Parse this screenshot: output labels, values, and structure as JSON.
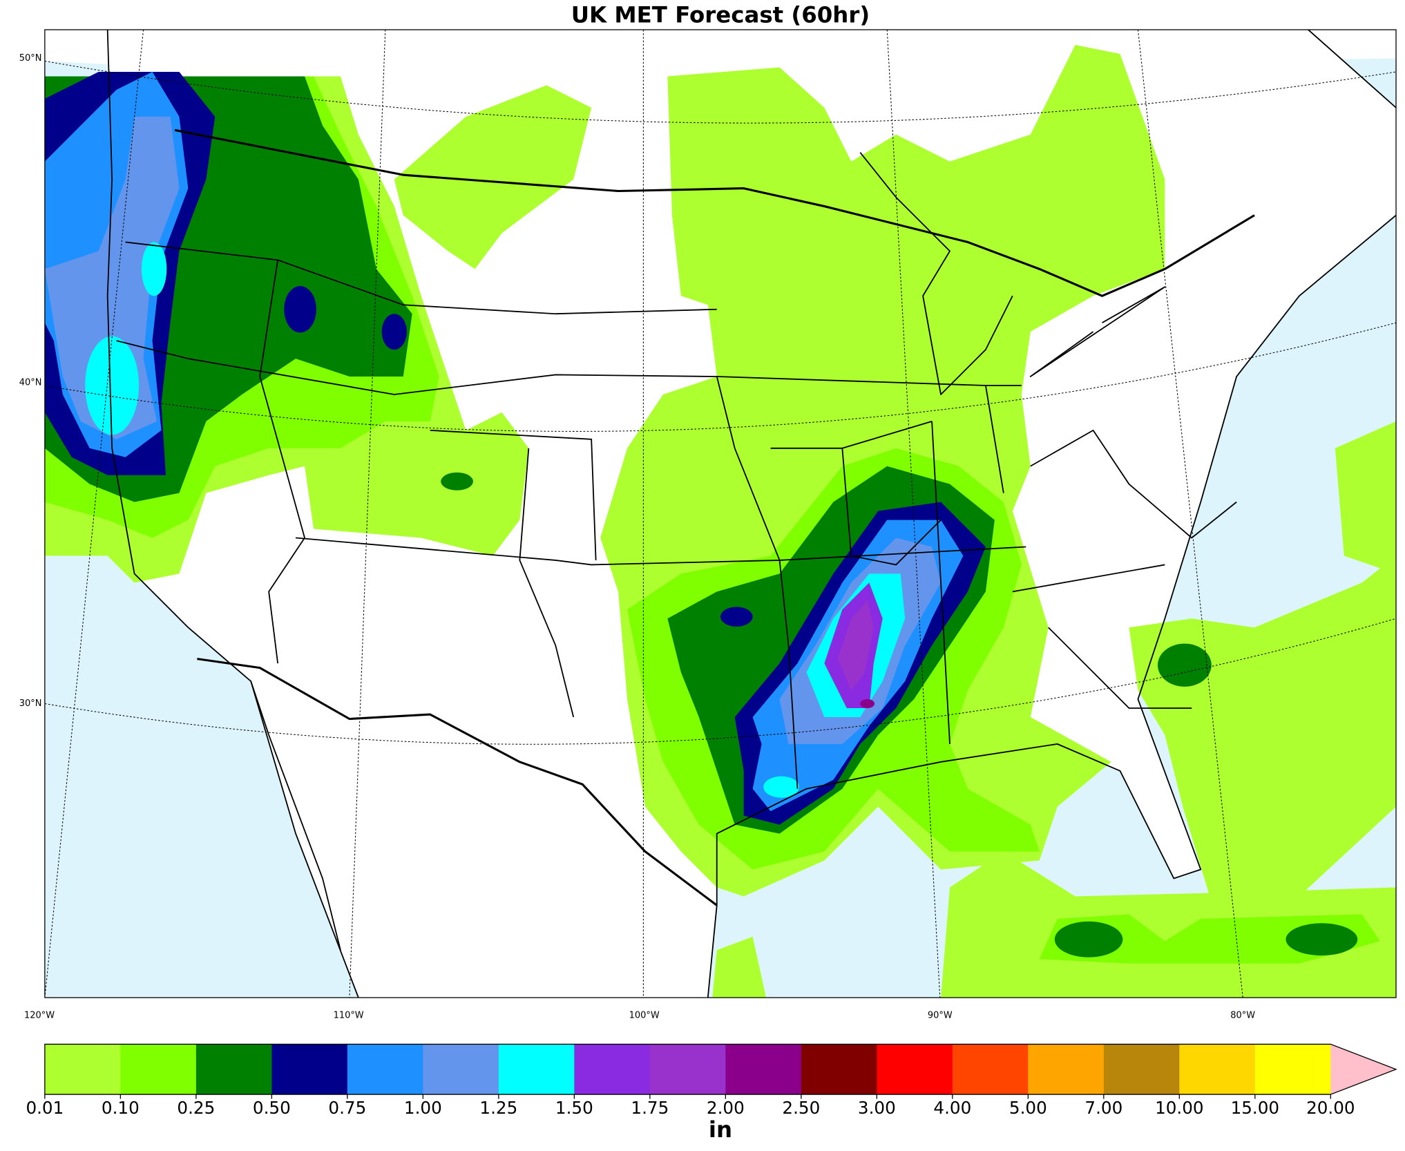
{
  "title": "UK MET Forecast (60hr)",
  "map": {
    "lat_labels": [
      "50°N",
      "40°N",
      "30°N"
    ],
    "lon_labels": [
      "120°W",
      "110°W",
      "100°W",
      "90°W",
      "80°W"
    ]
  },
  "colorbar": {
    "ticks": [
      {
        "value": 0.01,
        "label": "0.01"
      },
      {
        "value": 0.1,
        "label": "0.10"
      },
      {
        "value": 0.25,
        "label": "0.25"
      },
      {
        "value": 0.5,
        "label": "0.50"
      },
      {
        "value": 0.75,
        "label": "0.75"
      },
      {
        "value": 1,
        "label": "1.00"
      },
      {
        "value": 1.25,
        "label": "1.25"
      },
      {
        "value": 1.5,
        "label": "1.50"
      },
      {
        "value": 1.75,
        "label": "1.75"
      },
      {
        "value": 2,
        "label": "2.00"
      },
      {
        "value": 2.5,
        "label": "2.50"
      },
      {
        "value": 3,
        "label": "3.00"
      },
      {
        "value": 4,
        "label": "4.00"
      },
      {
        "value": 5,
        "label": "5.00"
      },
      {
        "value": 7,
        "label": "7.00"
      },
      {
        "value": 10,
        "label": "10.00"
      },
      {
        "value": 15,
        "label": "15.00"
      },
      {
        "value": 20,
        "label": "20.00"
      }
    ],
    "colors": [
      "#adff2f",
      "#7fff00",
      "#008000",
      "#00008b",
      "#1e90ff",
      "#6495ed",
      "#00ffff",
      "#8a2be2",
      "#9932cc",
      "#8b008b",
      "#800000",
      "#ff0000",
      "#ff4500",
      "#ffa500",
      "#b8860b",
      "#ffd700",
      "#ffff00"
    ],
    "extend_color": "#ffc0cb",
    "unit": "in"
  }
}
